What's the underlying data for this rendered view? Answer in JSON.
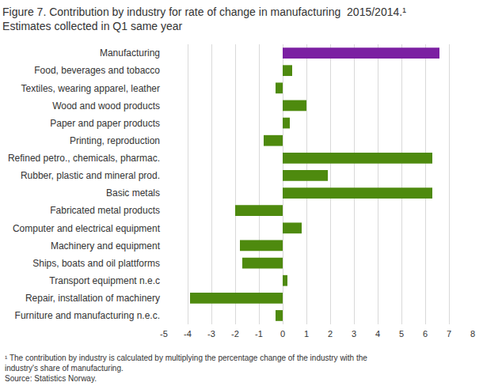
{
  "chart_data": {
    "type": "bar",
    "orientation": "horizontal",
    "title": [
      "Figure 7. Contribution by industry for rate of change in manufacturing  2015/2014.¹",
      "Estimates collected in Q1 same year"
    ],
    "footnote": [
      "¹ The contribution by industry is calculated by multiplying the percentage change of the industry with the",
      "industry's share of manufacturing."
    ],
    "source": "Source: Statistics Norway.",
    "categories": [
      "Manufacturing",
      "Food, beverages and tobacco",
      "Textiles, wearing apparel, leather",
      "Wood and wood products",
      "Paper and paper products",
      "Printing, reproduction",
      "Refined petro., chemicals, pharmac.",
      "Rubber, plastic and mineral prod.",
      "Basic metals",
      "Fabricated metal products",
      "Computer and electrical equipment",
      "Machinery and equipment",
      "Ships, boats and oil plattforms",
      "Transport equipment n.e.c",
      "Repair, installation of machinery",
      "Furniture and manufacturing n.e.c."
    ],
    "values": [
      6.6,
      0.4,
      -0.3,
      1.0,
      0.3,
      -0.8,
      6.3,
      1.9,
      6.3,
      -2.0,
      0.8,
      -1.8,
      -1.7,
      0.2,
      -3.9,
      -0.3
    ],
    "colors": [
      "#7b1fa2",
      "#4e8a0e",
      "#4e8a0e",
      "#4e8a0e",
      "#4e8a0e",
      "#4e8a0e",
      "#4e8a0e",
      "#4e8a0e",
      "#4e8a0e",
      "#4e8a0e",
      "#4e8a0e",
      "#4e8a0e",
      "#4e8a0e",
      "#4e8a0e",
      "#4e8a0e",
      "#4e8a0e"
    ],
    "xlim": [
      -5,
      8
    ],
    "xticks": [
      -5,
      -4,
      -3,
      -2,
      -1,
      0,
      1,
      2,
      3,
      4,
      5,
      6,
      7,
      8
    ],
    "grid": true
  }
}
